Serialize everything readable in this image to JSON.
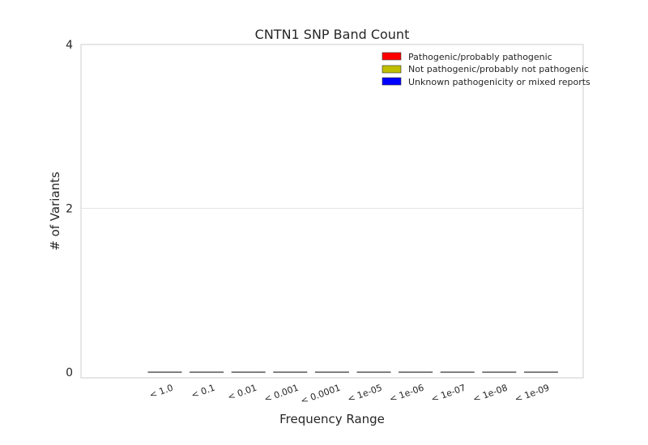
{
  "chart_data": {
    "type": "bar",
    "title": "CNTN1 SNP Band Count",
    "xlabel": "Frequency Range",
    "ylabel": "# of Variants",
    "categories": [
      "< 1.0",
      "< 0.1",
      "< 0.01",
      "< 0.001",
      "< 0.0001",
      "< 1e-05",
      "< 1e-06",
      "< 1e-07",
      "< 1e-08",
      "< 1e-09"
    ],
    "series": [
      {
        "name": "Pathogenic/probably pathogenic",
        "color": "#ff0000",
        "values": [
          0,
          0,
          0,
          0,
          0,
          0,
          0,
          0,
          0,
          0
        ]
      },
      {
        "name": "Not pathogenic/probably not pathogenic",
        "color": "#bfbf00",
        "values": [
          0,
          0,
          0,
          0,
          0,
          0,
          0,
          0,
          0,
          0
        ]
      },
      {
        "name": "Unknown pathogenicity or mixed reports",
        "color": "#0000ff",
        "values": [
          0,
          0,
          0,
          0,
          0,
          0,
          0,
          0,
          0,
          0
        ]
      }
    ],
    "ylim": [
      0,
      4
    ],
    "yticks": [
      "0",
      "2",
      "4"
    ],
    "grid": true,
    "legend_position": "top-right",
    "baseline_color": "#808080"
  }
}
